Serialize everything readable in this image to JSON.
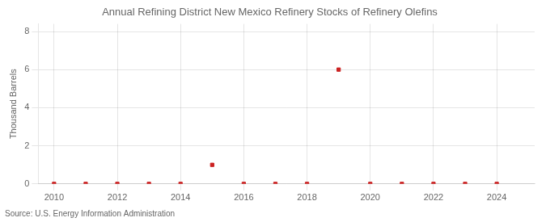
{
  "chart_data": {
    "type": "scatter",
    "title": "Annual Refining District New Mexico Refinery Stocks of Refinery Olefins",
    "ylabel": "Thousand Barrels",
    "annotations": [
      "Source: U.S. Energy Information Administration"
    ],
    "x": [
      2010,
      2011,
      2012,
      2013,
      2014,
      2015,
      2016,
      2017,
      2018,
      2019,
      2020,
      2021,
      2022,
      2023,
      2024
    ],
    "values": [
      0,
      0,
      0,
      0,
      0,
      1,
      0,
      0,
      0,
      6,
      0,
      0,
      0,
      0,
      0
    ],
    "color": "#cc2222",
    "marker": "square",
    "xlim": [
      2009.5,
      2025.2
    ],
    "ylim": [
      0,
      8.4
    ],
    "xticks": [
      2010,
      2012,
      2014,
      2016,
      2018,
      2020,
      2022,
      2024
    ],
    "yticks": [
      0,
      2,
      4,
      6,
      8
    ],
    "grid": true
  }
}
